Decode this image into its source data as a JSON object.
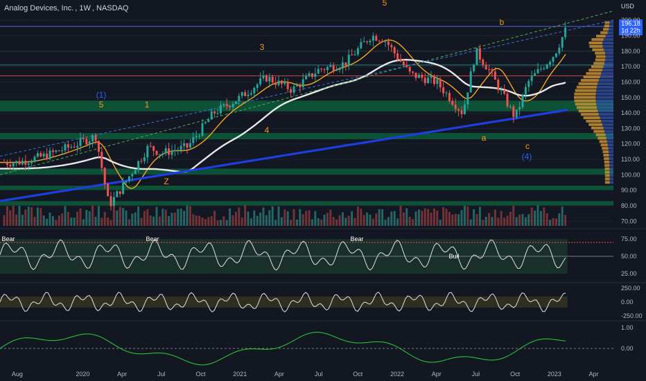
{
  "header": {
    "symbol_name": "Analog Devices, Inc.",
    "interval": "1W",
    "exchange": "NASDAQ",
    "currency": "USD"
  },
  "price_tag": {
    "price": "196.18",
    "countdown": "1d 22h"
  },
  "colors": {
    "background": "#131722",
    "up": "#26a69a",
    "down": "#ef5350",
    "ma_fast": "#f5a623",
    "ma_slow": "#e8e8e8",
    "ma_long": "#1e3fe0",
    "zone_green": "#0d5c3a",
    "wave": "#f39c12",
    "wave_blue": "#2962ff"
  },
  "chart_data": [
    {
      "type": "candlestick",
      "title": "",
      "x_ticks": [
        "Aug",
        "2020",
        "Apr",
        "Jul",
        "Oct",
        "2021",
        "Apr",
        "Jul",
        "Oct",
        "2022",
        "Apr",
        "Jul",
        "Oct",
        "2023",
        "Apr"
      ],
      "y_ticks": [
        70,
        80,
        90,
        100,
        110,
        120,
        130,
        140,
        150,
        160,
        170,
        180,
        190,
        200
      ],
      "ylim": [
        67,
        205
      ],
      "series": [
        {
          "name": "",
          "points": [
            [
              "2019-08",
              108
            ],
            [
              "2019-10",
              112
            ],
            [
              "2019-12",
              118
            ],
            [
              "2020-02",
              125
            ],
            [
              "2020-03",
              80
            ],
            [
              "2020-04",
              92
            ],
            [
              "2020-06",
              118
            ],
            [
              "2020-07",
              114
            ],
            [
              "2020-09",
              118
            ],
            [
              "2020-11",
              140
            ],
            [
              "2021-01",
              150
            ],
            [
              "2021-03",
              163
            ],
            [
              "2021-05",
              155
            ],
            [
              "2021-07",
              168
            ],
            [
              "2021-09",
              172
            ],
            [
              "2021-11",
              190
            ],
            [
              "2021-12",
              188
            ],
            [
              "2022-02",
              165
            ],
            [
              "2022-04",
              160
            ],
            [
              "2022-06",
              140
            ],
            [
              "2022-07",
              180
            ],
            [
              "2022-08",
              168
            ],
            [
              "2022-10",
              137
            ],
            [
              "2022-11",
              160
            ],
            [
              "2023-01",
              178
            ],
            [
              "2023-02",
              196.18
            ]
          ]
        }
      ],
      "annotations": [
        "(1)",
        "5",
        "1",
        "Z",
        "3",
        "4",
        "5",
        "b",
        "a",
        "c",
        "(4)"
      ]
    },
    {
      "type": "line",
      "title": "",
      "y_ticks": [
        25.0,
        50.0,
        75.0
      ],
      "ylim": [
        20,
        85
      ],
      "labels": [
        "Bear",
        "Bear",
        "Bear",
        "Bull"
      ]
    },
    {
      "type": "line",
      "title": "",
      "y_ticks": [
        -250.0,
        0.0,
        250.0
      ],
      "ylim": [
        -300,
        300
      ]
    },
    {
      "type": "line",
      "title": "",
      "y_ticks": [
        0.0,
        1.0
      ],
      "ylim": [
        -0.9,
        1.1
      ]
    }
  ]
}
